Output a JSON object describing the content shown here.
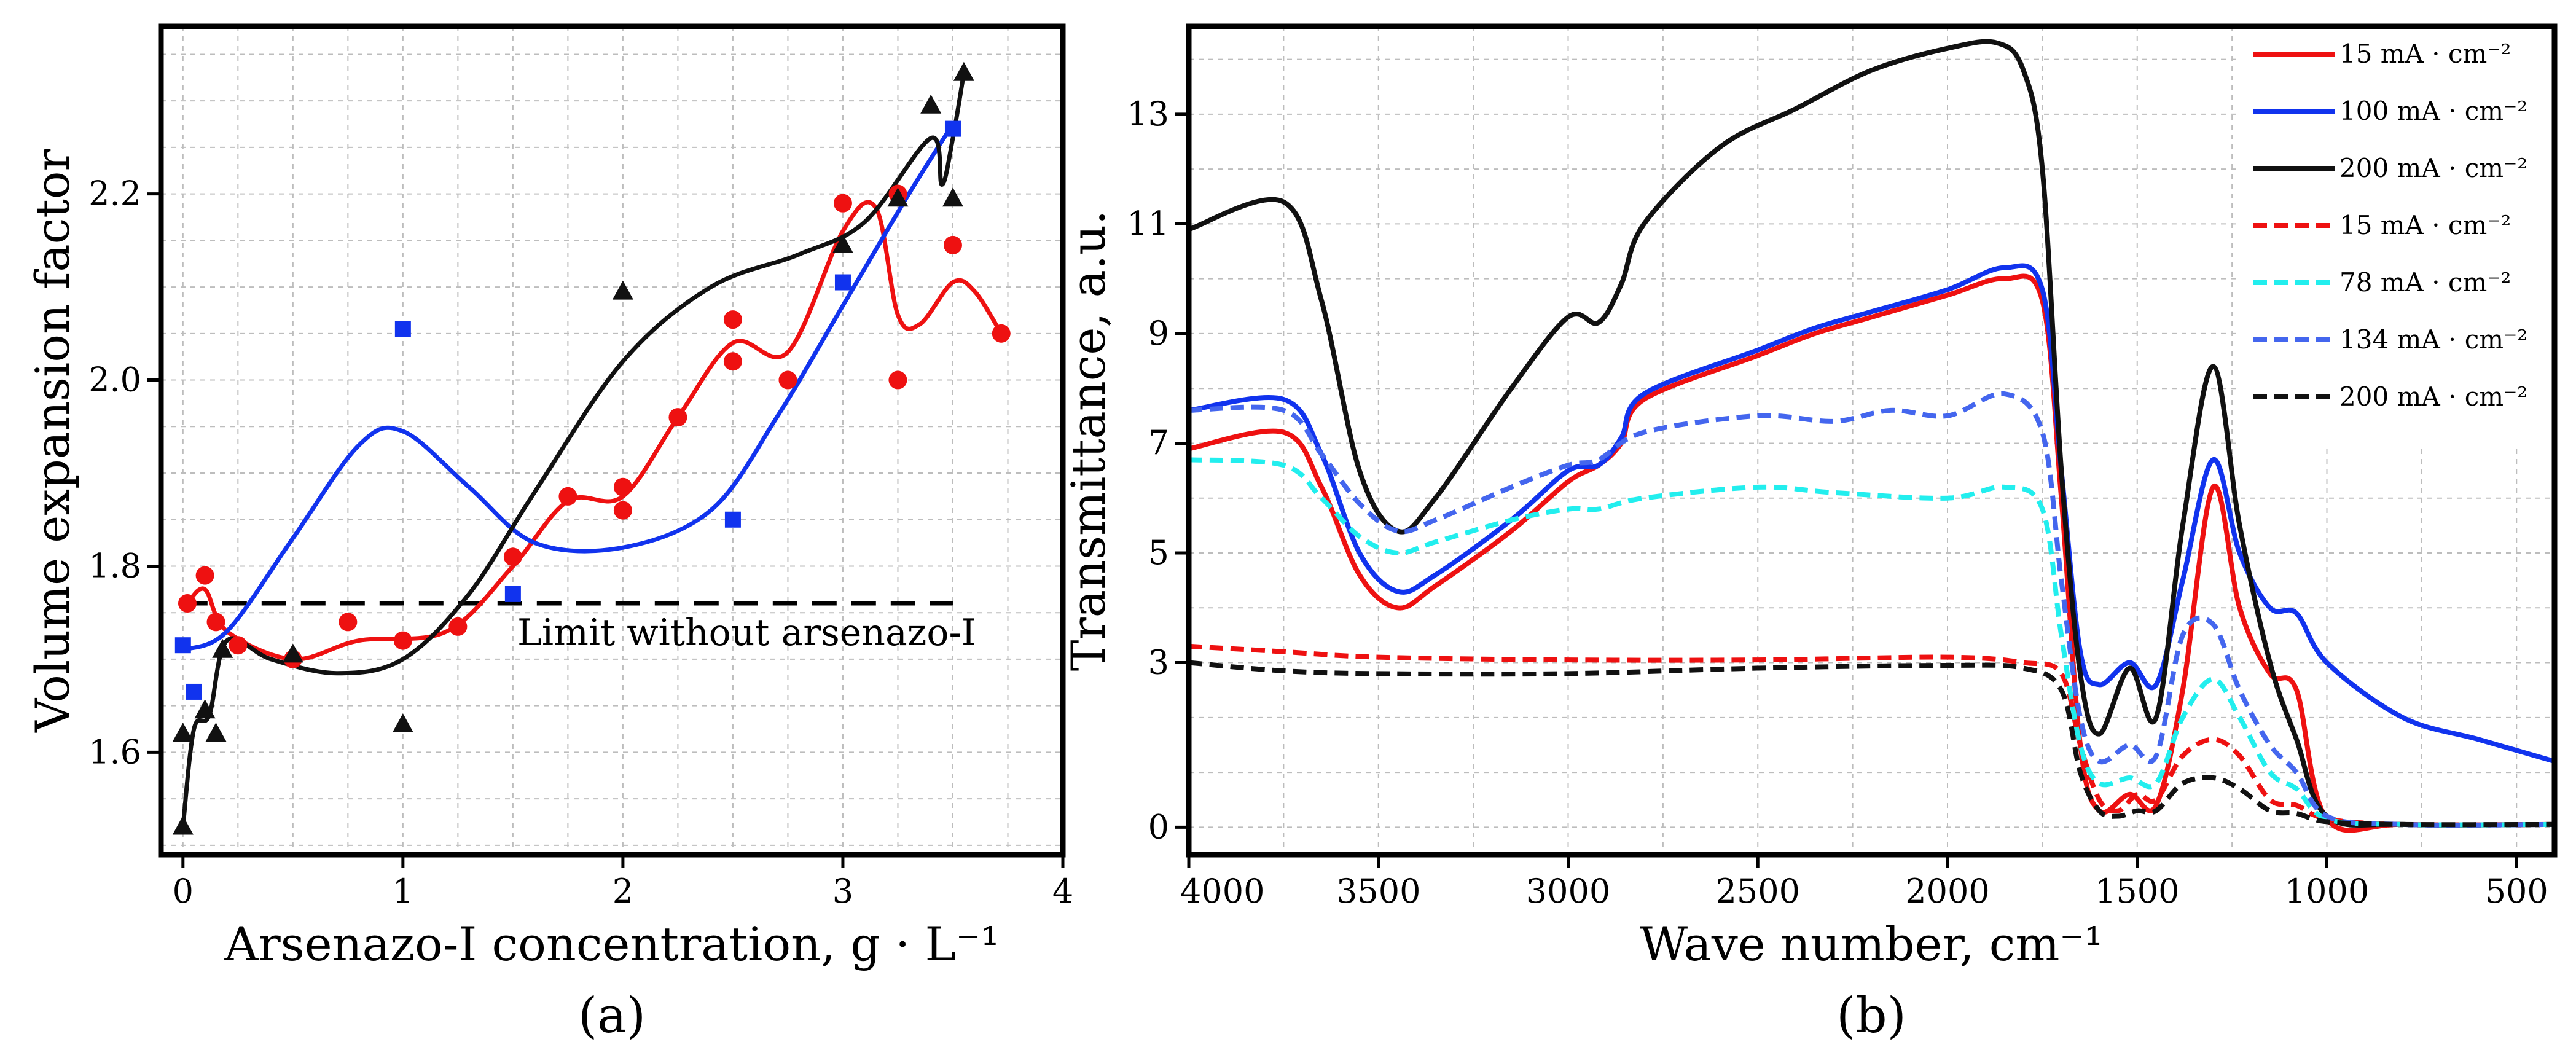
{
  "chart_data": [
    {
      "type": "scatter",
      "panel_label": "(a)",
      "xlabel": "Arsenazo-I concentration, g · L⁻¹",
      "ylabel": "Volume expansion factor",
      "xlim": [
        -0.1,
        4.0
      ],
      "ylim": [
        1.49,
        2.38
      ],
      "x_ticks": [
        0,
        1,
        2,
        3,
        4
      ],
      "y_ticks": [
        1.6,
        1.8,
        2.0,
        2.2
      ],
      "grid": true,
      "reference_line": {
        "y": 1.76,
        "x_range": [
          0,
          3.5
        ],
        "label": "Limit without arsenazo-I",
        "color": "#000000"
      },
      "series": [
        {
          "name": "red",
          "marker": "circle",
          "color": "#ee1111",
          "points": [
            [
              0.02,
              1.76
            ],
            [
              0.1,
              1.79
            ],
            [
              0.15,
              1.74
            ],
            [
              0.25,
              1.715
            ],
            [
              0.5,
              1.7
            ],
            [
              0.75,
              1.74
            ],
            [
              1.0,
              1.72
            ],
            [
              1.25,
              1.735
            ],
            [
              1.5,
              1.81
            ],
            [
              1.75,
              1.875
            ],
            [
              2.0,
              1.885
            ],
            [
              2.0,
              1.86
            ],
            [
              2.25,
              1.96
            ],
            [
              2.5,
              2.065
            ],
            [
              2.5,
              2.02
            ],
            [
              2.75,
              2.0
            ],
            [
              3.0,
              2.19
            ],
            [
              3.25,
              2.2
            ],
            [
              3.25,
              2.0
            ],
            [
              3.5,
              2.145
            ],
            [
              3.72,
              2.05
            ]
          ],
          "fit": [
            [
              0.02,
              1.76
            ],
            [
              0.1,
              1.775
            ],
            [
              0.2,
              1.73
            ],
            [
              0.5,
              1.7
            ],
            [
              0.8,
              1.72
            ],
            [
              1.2,
              1.73
            ],
            [
              1.5,
              1.8
            ],
            [
              1.75,
              1.87
            ],
            [
              2.0,
              1.875
            ],
            [
              2.25,
              1.96
            ],
            [
              2.5,
              2.04
            ],
            [
              2.75,
              2.03
            ],
            [
              3.0,
              2.16
            ],
            [
              3.15,
              2.185
            ],
            [
              3.25,
              2.07
            ],
            [
              3.35,
              2.06
            ],
            [
              3.5,
              2.105
            ],
            [
              3.6,
              2.095
            ],
            [
              3.72,
              2.05
            ]
          ]
        },
        {
          "name": "blue",
          "marker": "square",
          "color": "#1133ee",
          "points": [
            [
              0,
              1.715
            ],
            [
              0.05,
              1.665
            ],
            [
              1.0,
              2.055
            ],
            [
              1.5,
              1.77
            ],
            [
              2.5,
              1.85
            ],
            [
              3.0,
              2.105
            ],
            [
              3.5,
              2.27
            ]
          ],
          "fit": [
            [
              0,
              1.71
            ],
            [
              0.2,
              1.73
            ],
            [
              0.5,
              1.83
            ],
            [
              0.8,
              1.93
            ],
            [
              1.0,
              1.945
            ],
            [
              1.3,
              1.885
            ],
            [
              1.6,
              1.825
            ],
            [
              2.0,
              1.82
            ],
            [
              2.4,
              1.86
            ],
            [
              2.7,
              1.96
            ],
            [
              3.0,
              2.08
            ],
            [
              3.3,
              2.2
            ],
            [
              3.5,
              2.275
            ]
          ]
        },
        {
          "name": "black",
          "marker": "triangle",
          "color": "#111111",
          "points": [
            [
              0,
              1.52
            ],
            [
              0,
              1.62
            ],
            [
              0.1,
              1.645
            ],
            [
              0.15,
              1.62
            ],
            [
              0.18,
              1.71
            ],
            [
              0.5,
              1.705
            ],
            [
              1.0,
              1.63
            ],
            [
              2.0,
              2.095
            ],
            [
              3.0,
              2.145
            ],
            [
              3.25,
              2.195
            ],
            [
              3.4,
              2.295
            ],
            [
              3.5,
              2.195
            ],
            [
              3.55,
              2.33
            ]
          ],
          "fit": [
            [
              0,
              1.52
            ],
            [
              0.05,
              1.625
            ],
            [
              0.12,
              1.64
            ],
            [
              0.2,
              1.72
            ],
            [
              0.4,
              1.7
            ],
            [
              0.7,
              1.685
            ],
            [
              1.0,
              1.7
            ],
            [
              1.3,
              1.77
            ],
            [
              1.6,
              1.88
            ],
            [
              2.0,
              2.02
            ],
            [
              2.4,
              2.1
            ],
            [
              2.8,
              2.135
            ],
            [
              3.1,
              2.17
            ],
            [
              3.4,
              2.26
            ],
            [
              3.45,
              2.21
            ],
            [
              3.5,
              2.26
            ],
            [
              3.55,
              2.33
            ]
          ]
        }
      ]
    },
    {
      "type": "line",
      "panel_label": "(b)",
      "xlabel": "Wave number, cm⁻¹",
      "ylabel": "Transmittance, a.u.",
      "xlim": [
        4000,
        400
      ],
      "ylim": [
        -0.5,
        14.6
      ],
      "x_ticks": [
        4000,
        3500,
        3000,
        2500,
        2000,
        1500,
        1000,
        500
      ],
      "y_ticks": [
        0,
        3,
        5,
        7,
        9,
        11,
        13
      ],
      "grid": true,
      "legend": "top-right",
      "series": [
        {
          "name": "15 mA · cm⁻²",
          "color": "#ee1111",
          "dash": "solid",
          "x": [
            4000,
            3750,
            3650,
            3550,
            3450,
            3350,
            3150,
            3000,
            2920,
            2860,
            2800,
            2500,
            2350,
            2200,
            2000,
            1850,
            1750,
            1700,
            1650,
            1600,
            1520,
            1450,
            1380,
            1300,
            1230,
            1150,
            1080,
            1000,
            800,
            400
          ],
          "y": [
            6.9,
            7.2,
            6.2,
            4.6,
            4.0,
            4.4,
            5.4,
            6.3,
            6.6,
            7.0,
            7.8,
            8.6,
            9.0,
            9.3,
            9.7,
            10.0,
            9.6,
            6.0,
            1.5,
            0.3,
            0.6,
            0.4,
            2.5,
            6.2,
            4.0,
            2.8,
            2.5,
            0.15,
            0.05,
            0.05
          ]
        },
        {
          "name": "100 mA · cm⁻²",
          "color": "#1133ee",
          "dash": "solid",
          "x": [
            4000,
            3750,
            3650,
            3550,
            3450,
            3350,
            3150,
            3000,
            2920,
            2860,
            2800,
            2500,
            2350,
            2200,
            2000,
            1850,
            1750,
            1700,
            1650,
            1600,
            1520,
            1450,
            1380,
            1300,
            1230,
            1150,
            1080,
            1000,
            800,
            600,
            400
          ],
          "y": [
            7.6,
            7.8,
            6.8,
            5.0,
            4.3,
            4.6,
            5.6,
            6.5,
            6.6,
            7.1,
            7.9,
            8.7,
            9.1,
            9.4,
            9.8,
            10.2,
            9.8,
            6.5,
            3.2,
            2.6,
            3.0,
            2.6,
            4.5,
            6.7,
            5.0,
            4.0,
            3.9,
            3.0,
            2.0,
            1.6,
            1.2
          ]
        },
        {
          "name": "200 mA · cm⁻²",
          "color": "#111111",
          "dash": "solid",
          "x": [
            4000,
            3750,
            3650,
            3550,
            3450,
            3350,
            3150,
            3000,
            2920,
            2860,
            2800,
            2600,
            2400,
            2200,
            2000,
            1870,
            1800,
            1750,
            1700,
            1650,
            1600,
            1520,
            1450,
            1380,
            1300,
            1230,
            1150,
            1080,
            1000,
            800,
            400
          ],
          "y": [
            10.9,
            11.4,
            9.6,
            6.5,
            5.4,
            6.0,
            8.0,
            9.3,
            9.2,
            9.9,
            11.0,
            12.4,
            13.1,
            13.8,
            14.2,
            14.3,
            13.8,
            12.0,
            6.5,
            2.8,
            1.7,
            2.9,
            2.0,
            5.5,
            8.4,
            5.5,
            3.0,
            1.6,
            0.2,
            0.05,
            0.05
          ]
        },
        {
          "name": "15 mA · cm⁻²",
          "color": "#ee1111",
          "dash": "dashed",
          "x": [
            4000,
            3750,
            3500,
            3000,
            2500,
            2000,
            1800,
            1700,
            1650,
            1600,
            1550,
            1500,
            1450,
            1380,
            1300,
            1230,
            1150,
            1080,
            1000,
            800,
            400
          ],
          "y": [
            3.3,
            3.2,
            3.1,
            3.05,
            3.05,
            3.1,
            3.0,
            2.8,
            1.5,
            0.5,
            0.3,
            0.6,
            0.5,
            1.3,
            1.6,
            1.3,
            0.5,
            0.4,
            0.15,
            0.05,
            0.05
          ]
        },
        {
          "name": "78 mA · cm⁻²",
          "color": "#22eeee",
          "dash": "dashed",
          "x": [
            4000,
            3750,
            3650,
            3550,
            3450,
            3350,
            3150,
            3000,
            2920,
            2800,
            2500,
            2300,
            2000,
            1850,
            1750,
            1700,
            1650,
            1600,
            1520,
            1450,
            1380,
            1300,
            1230,
            1150,
            1080,
            1000,
            800,
            400
          ],
          "y": [
            6.7,
            6.6,
            6.0,
            5.3,
            5.0,
            5.2,
            5.6,
            5.8,
            5.8,
            6.0,
            6.2,
            6.1,
            6.0,
            6.2,
            5.8,
            3.5,
            1.5,
            0.8,
            0.9,
            0.8,
            2.0,
            2.7,
            2.0,
            1.0,
            0.7,
            0.15,
            0.05,
            0.05
          ]
        },
        {
          "name": "134 mA · cm⁻²",
          "color": "#4466ee",
          "dash": "dashed",
          "x": [
            4000,
            3750,
            3650,
            3550,
            3450,
            3350,
            3150,
            3000,
            2920,
            2800,
            2500,
            2300,
            2150,
            2000,
            1850,
            1750,
            1700,
            1650,
            1600,
            1520,
            1450,
            1380,
            1300,
            1230,
            1150,
            1080,
            1000,
            800,
            400
          ],
          "y": [
            7.6,
            7.6,
            6.8,
            5.9,
            5.4,
            5.6,
            6.2,
            6.6,
            6.7,
            7.2,
            7.5,
            7.4,
            7.6,
            7.5,
            7.9,
            7.2,
            4.5,
            2.0,
            1.2,
            1.5,
            1.3,
            3.5,
            3.7,
            2.5,
            1.5,
            1.0,
            0.2,
            0.05,
            0.05
          ]
        },
        {
          "name": "200 mA · cm⁻²",
          "color": "#111111",
          "dash": "dashed",
          "x": [
            4000,
            3750,
            3500,
            3000,
            2500,
            2000,
            1800,
            1700,
            1650,
            1600,
            1550,
            1500,
            1450,
            1380,
            1300,
            1230,
            1150,
            1080,
            1000,
            800,
            400
          ],
          "y": [
            3.0,
            2.85,
            2.8,
            2.8,
            2.9,
            2.95,
            2.9,
            2.5,
            1.0,
            0.3,
            0.2,
            0.3,
            0.3,
            0.8,
            0.9,
            0.7,
            0.3,
            0.25,
            0.1,
            0.05,
            0.05
          ]
        }
      ]
    }
  ]
}
